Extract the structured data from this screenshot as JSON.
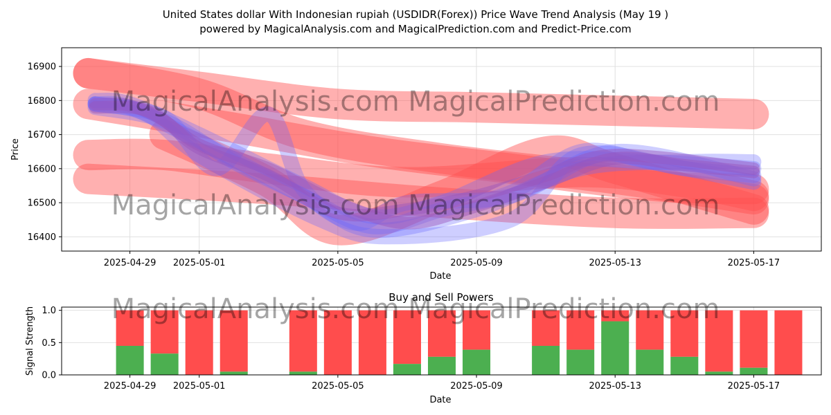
{
  "title_line1": "United States dollar With Indonesian rupiah (USDIDR(Forex)) Price Wave Trend Analysis (May 19 )",
  "title_line2": "powered by MagicalAnalysis.com and MagicalPrediction.com and Predict-Price.com",
  "watermark": "MagicalAnalysis.com    MagicalPrediction.com",
  "chart_data": [
    {
      "type": "line",
      "title": "",
      "xlabel": "Date",
      "ylabel": "Price",
      "x_tick_labels": [
        "2025-04-29",
        "2025-05-01",
        "2025-05-05",
        "2025-05-09",
        "2025-05-13",
        "2025-05-17"
      ],
      "x_tick_days": [
        1,
        3,
        7,
        11,
        15,
        19
      ],
      "xlim_days": [
        -0.97,
        20.95
      ],
      "ylim": [
        16358,
        16955
      ],
      "y_ticks": [
        16400,
        16500,
        16600,
        16700,
        16800,
        16900
      ],
      "grid": true,
      "colors": {
        "red": "#ff5050",
        "blue": "#6666ff",
        "purple": "#9955bb"
      },
      "red_bands": [
        {
          "x": [
            -0.2,
            3,
            7,
            11,
            15,
            19
          ],
          "y": [
            16880,
            16840,
            16790,
            16780,
            16770,
            16760
          ]
        },
        {
          "x": [
            -0.2,
            3,
            6,
            10,
            15,
            19
          ],
          "y": [
            16880,
            16820,
            16700,
            16630,
            16570,
            16510
          ]
        },
        {
          "x": [
            -0.2,
            4,
            8,
            12,
            16,
            19
          ],
          "y": [
            16790,
            16720,
            16650,
            16600,
            16550,
            16540
          ]
        },
        {
          "x": [
            -0.2,
            2,
            5,
            9,
            14,
            17,
            19
          ],
          "y": [
            16640,
            16640,
            16600,
            16560,
            16590,
            16560,
            16520
          ]
        },
        {
          "x": [
            -0.2,
            5,
            10,
            15,
            19
          ],
          "y": [
            16570,
            16540,
            16500,
            16470,
            16470
          ]
        },
        {
          "x": [
            2,
            5,
            7,
            10,
            13,
            15,
            19
          ],
          "y": [
            16700,
            16560,
            16420,
            16520,
            16650,
            16600,
            16480
          ]
        }
      ],
      "blue_bands": [
        {
          "x": [
            0,
            1,
            3,
            6,
            8,
            11,
            14,
            17,
            19
          ],
          "y": [
            16790,
            16780,
            16680,
            16520,
            16420,
            16480,
            16600,
            16620,
            16620
          ]
        },
        {
          "x": [
            0,
            1.5,
            3,
            6.5,
            8.5,
            12,
            14,
            17,
            19
          ],
          "y": [
            16790,
            16760,
            16640,
            16450,
            16400,
            16450,
            16640,
            16600,
            16580
          ]
        },
        {
          "x": [
            0,
            1,
            3,
            6,
            8,
            10,
            13,
            16,
            19
          ],
          "y": [
            16800,
            16790,
            16700,
            16550,
            16460,
            16500,
            16620,
            16620,
            16600
          ]
        },
        {
          "x": [
            0,
            2,
            3.5,
            5,
            6,
            7.5,
            9,
            12,
            15,
            19
          ],
          "y": [
            16790,
            16750,
            16600,
            16760,
            16540,
            16440,
            16500,
            16520,
            16650,
            16570
          ]
        },
        {
          "x": [
            0,
            2,
            4,
            6,
            8,
            10,
            12,
            14,
            16,
            19
          ],
          "y": [
            16780,
            16740,
            16620,
            16520,
            16430,
            16480,
            16530,
            16650,
            16620,
            16560
          ]
        }
      ],
      "purple_bands": [
        {
          "x": [
            0,
            1,
            2,
            3,
            5,
            7,
            9,
            11,
            13,
            15,
            19
          ],
          "y": [
            16790,
            16785,
            16740,
            16660,
            16580,
            16470,
            16480,
            16520,
            16580,
            16640,
            16600
          ]
        },
        {
          "x": [
            0,
            1.5,
            3,
            5,
            7,
            9,
            11,
            13,
            15,
            17,
            19
          ],
          "y": [
            16780,
            16770,
            16670,
            16600,
            16500,
            16440,
            16490,
            16560,
            16630,
            16610,
            16590
          ]
        }
      ]
    },
    {
      "type": "bar",
      "title": "Buy and Sell Powers",
      "xlabel": "Date",
      "ylabel": "Signal Strength",
      "x_tick_labels": [
        "2025-04-29",
        "2025-05-01",
        "2025-05-05",
        "2025-05-09",
        "2025-05-13",
        "2025-05-17"
      ],
      "x_tick_days": [
        1,
        3,
        7,
        11,
        15,
        19
      ],
      "xlim_days": [
        -0.97,
        20.95
      ],
      "ylim": [
        0,
        1.05
      ],
      "y_ticks": [
        0.0,
        0.5,
        1.0
      ],
      "y_tick_labels": [
        "0.0",
        "0.5",
        "1.0"
      ],
      "grid": true,
      "bar_days": [
        1,
        2,
        3,
        4,
        6,
        7,
        8,
        9,
        10,
        11,
        13,
        14,
        15,
        16,
        17,
        18,
        19,
        20
      ],
      "buy_values": [
        0.45,
        0.33,
        0.0,
        0.05,
        0.05,
        0.0,
        0.0,
        0.17,
        0.28,
        0.39,
        0.45,
        0.39,
        0.83,
        0.39,
        0.28,
        0.05,
        0.11,
        0.0
      ],
      "series": [
        {
          "name": "Buy",
          "color": "#4caf50"
        },
        {
          "name": "Sell",
          "color": "#ff4d4d"
        }
      ]
    }
  ]
}
